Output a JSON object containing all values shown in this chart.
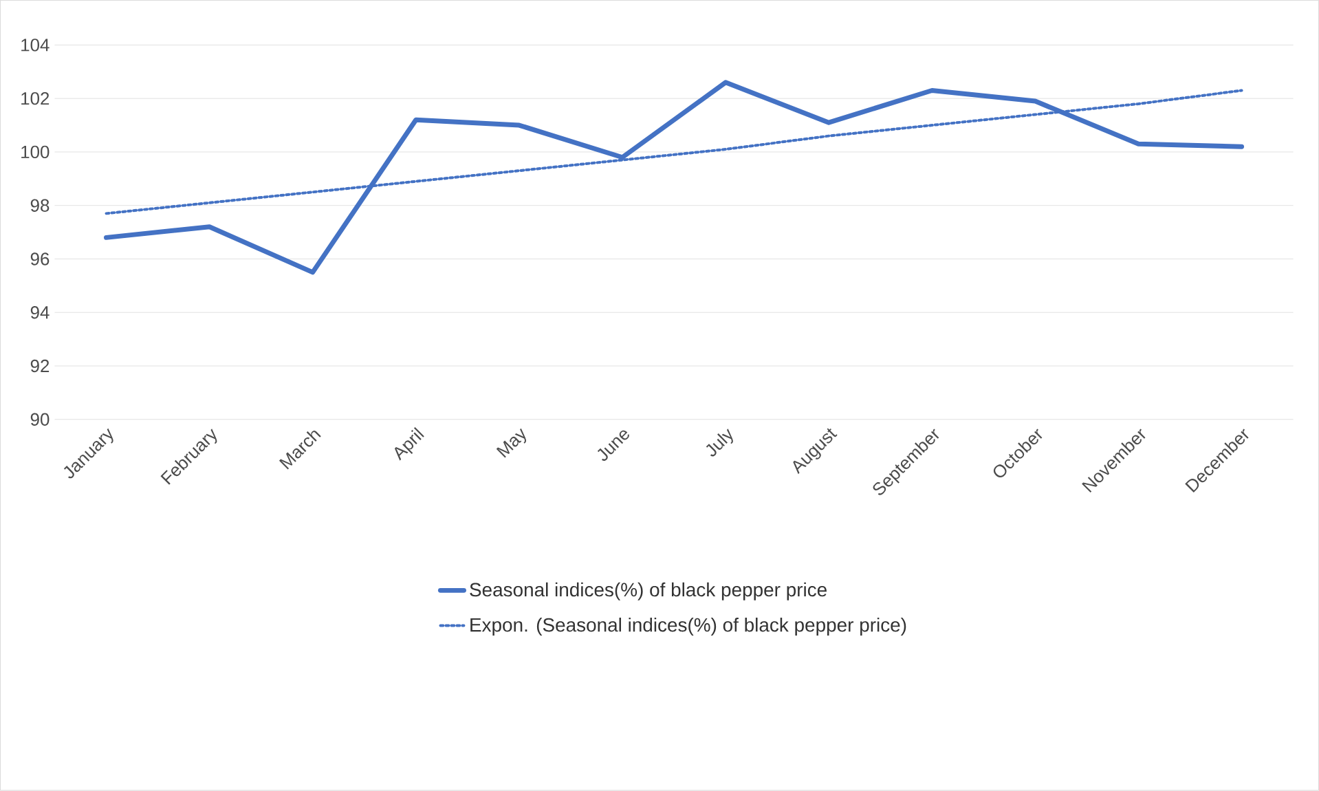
{
  "chart_data": {
    "type": "line",
    "categories": [
      "January",
      "February",
      "March",
      "April",
      "May",
      "June",
      "July",
      "August",
      "September",
      "October",
      "November",
      "December"
    ],
    "series": [
      {
        "name": "Seasonal indices(%) of black pepper price",
        "color": "#4472c4",
        "line_style": "solid",
        "values": [
          96.8,
          97.2,
          95.5,
          101.2,
          101.0,
          99.8,
          102.6,
          101.1,
          102.3,
          101.9,
          100.3,
          100.2
        ]
      },
      {
        "name": "Expon. (Seasonal indices(%) of black pepper price)",
        "color": "#4472c4",
        "line_style": "dotted",
        "values": [
          97.7,
          98.1,
          98.5,
          98.9,
          99.3,
          99.7,
          100.1,
          100.6,
          101.0,
          101.4,
          101.8,
          102.3
        ]
      }
    ],
    "ylim": [
      90,
      104
    ],
    "yticks": [
      90,
      92,
      94,
      96,
      98,
      100,
      102,
      104
    ],
    "grid": "y",
    "legend": "bottom",
    "marker": "none"
  }
}
